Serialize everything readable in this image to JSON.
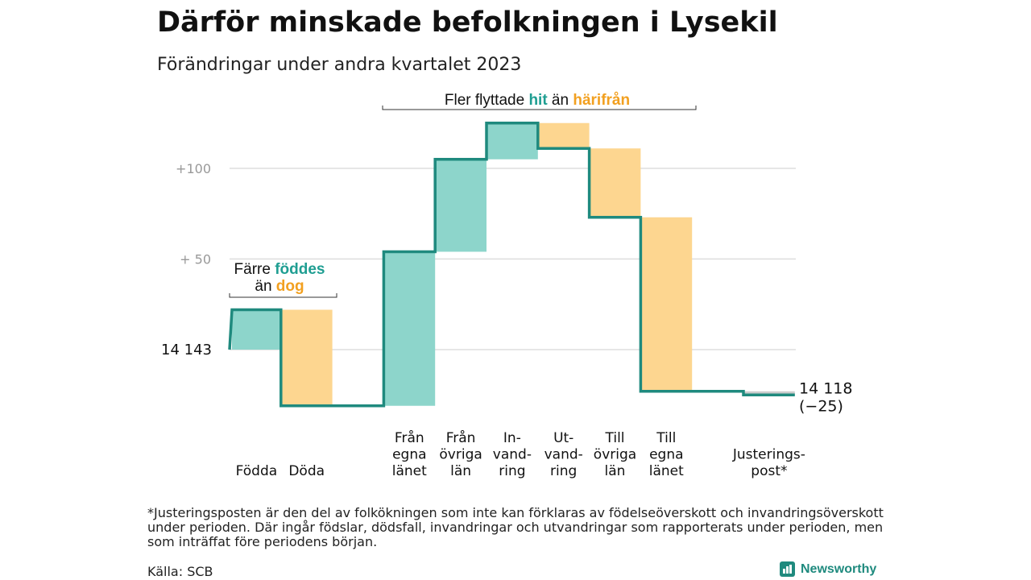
{
  "title": "Därför minskade befolkningen i Lysekil",
  "subtitle": "Förändringar under andra kvartalet 2023",
  "footnote": "*Justeringsposten är den del av folkökningen som inte kan förklaras av födelseöverskott och invandringsöverskott under perioden. Där ingår födslar, dödsfall, invandringar och utvandringar som rapporterats under perioden, men som inträffat före periodens början.",
  "source": "Källa: SCB",
  "brand": "Newsworthy",
  "colors": {
    "increase_fill": "#8dd5cb",
    "decrease_fill": "#fdd690",
    "line": "#1f8a7e",
    "accent_teal": "#1f9e92",
    "accent_orange": "#f2a020",
    "gridline": "#dddddd",
    "tick_text": "#999999",
    "adjust_fill": "#cccccc"
  },
  "chart_data": {
    "type": "waterfall",
    "start_value": 14143,
    "start_label": "14  143",
    "end_label_value": "14 118",
    "end_label_change": "(−25)",
    "yaxis": {
      "range": [
        -35,
        125
      ],
      "gridlines": [
        0,
        50,
        100
      ],
      "tick_labels": [
        {
          "value": 50,
          "label": "+  50"
        },
        {
          "value": 100,
          "label": "+100"
        }
      ]
    },
    "steps": [
      {
        "lines": [
          "Födda"
        ],
        "change": 22
      },
      {
        "lines": [
          "Döda"
        ],
        "change": -53
      },
      {
        "lines": [
          ""
        ],
        "change": 0
      },
      {
        "lines": [
          "Från",
          "egna",
          "länet"
        ],
        "change": 85
      },
      {
        "lines": [
          "Från",
          "övriga",
          "län"
        ],
        "change": 51
      },
      {
        "lines": [
          "In-",
          "vand-",
          "ring"
        ],
        "change": 20
      },
      {
        "lines": [
          "Ut-",
          "vand-",
          "ring"
        ],
        "change": -14
      },
      {
        "lines": [
          "Till",
          "övriga",
          "län"
        ],
        "change": -38
      },
      {
        "lines": [
          "Till",
          "egna",
          "länet"
        ],
        "change": -96
      },
      {
        "lines": [
          ""
        ],
        "change": 0
      },
      {
        "lines": [
          "Justerings-",
          "post*"
        ],
        "change": -2
      }
    ],
    "annotations": [
      {
        "parts": [
          {
            "text": "Färre ",
            "color": "dark"
          },
          {
            "text": "föddes",
            "color": "teal"
          }
        ],
        "parts2": [
          {
            "text": "än ",
            "color": "dark"
          },
          {
            "text": "dog",
            "color": "orange"
          }
        ]
      },
      {
        "parts": [
          {
            "text": "Fler flyttade ",
            "color": "dark"
          },
          {
            "text": "hit",
            "color": "teal"
          },
          {
            "text": "  än ",
            "color": "dark"
          },
          {
            "text": "härifrån",
            "color": "orange"
          }
        ]
      }
    ]
  }
}
